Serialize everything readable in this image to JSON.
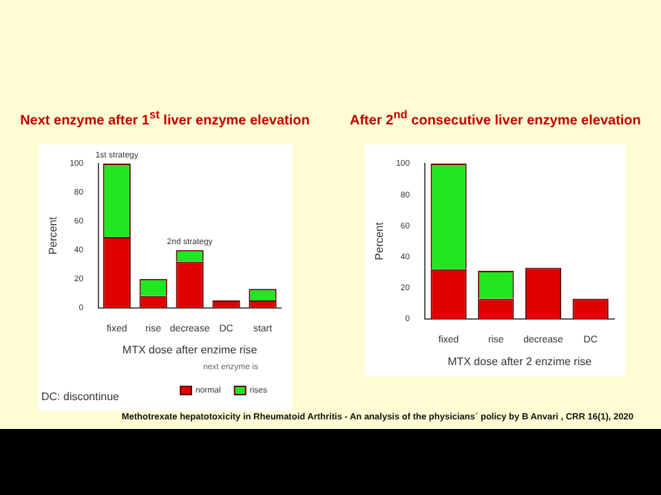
{
  "chart_data": [
    {
      "type": "bar",
      "title": "Next enzyme after 1$^{st}$ liver enzyme elevation",
      "xlabel": "MTX dose after enzime rise",
      "ylabel": "Percent",
      "legend_title": "next enzyme is",
      "categories": [
        "fixed",
        "rise",
        "decrease",
        "DC",
        "start"
      ],
      "stacked": true,
      "series": [
        {
          "name": "normal",
          "color": "#e00000",
          "values": [
            49,
            8,
            32,
            5,
            5
          ]
        },
        {
          "name": "rises",
          "color": "#22e622",
          "values": [
            51,
            12,
            8,
            0,
            8
          ]
        }
      ],
      "ylim": [
        0,
        100
      ],
      "yticks": [
        0,
        20,
        40,
        60,
        80,
        100
      ],
      "grid": false,
      "legend": "bottom right",
      "annotations": [
        {
          "text": "1st strategy",
          "x": "fixed",
          "y": 100
        },
        {
          "text": "2nd strategy",
          "x": "decrease",
          "y": 40
        },
        "DC: discontinue"
      ]
    },
    {
      "type": "bar",
      "title": "After 2$^{nd}$ consecutive liver enzyme elevation",
      "xlabel": "MTX dose after 2 enzime rise",
      "ylabel": "Percent",
      "categories": [
        "fixed",
        "rise",
        "decrease",
        "DC"
      ],
      "stacked": true,
      "series": [
        {
          "color": "#e00000",
          "values": [
            32,
            13,
            33,
            13
          ]
        },
        {
          "color": "#22e622",
          "values": [
            68,
            18,
            0,
            0
          ]
        }
      ],
      "ylim": [
        0,
        100
      ],
      "yticks": [
        0,
        20,
        40,
        60,
        80,
        100
      ],
      "grid": false,
      "legend": false,
      "annotations": [
        "Methotrexate hepatotoxicity in Rheumatoid Arthritis - An analysis of the physicians´ policy by B Anvari , CRR 16(1), 2020"
      ]
    }
  ]
}
